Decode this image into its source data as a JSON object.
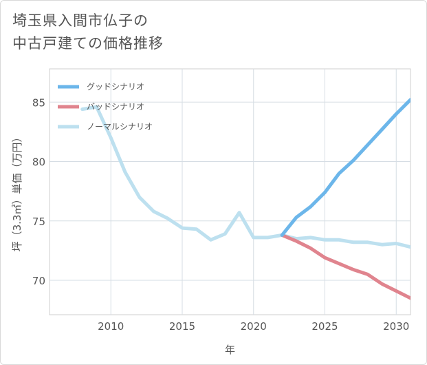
{
  "page_title": {
    "line1": "埼玉県入間市仏子の",
    "line2": "中古戸建ての価格推移"
  },
  "chart_data": {
    "type": "line",
    "xlabel": "年",
    "ylabel": "坪（3.3㎡）単価（万円）",
    "xlim": [
      2005.7,
      2031
    ],
    "ylim": [
      67.1,
      87.8
    ],
    "xticks": [
      2010,
      2015,
      2020,
      2025,
      2030
    ],
    "yticks": [
      70,
      75,
      80,
      85
    ],
    "grid": true,
    "legend_position": "top-left",
    "series": [
      {
        "name": "グッドシナリオ",
        "color": "#6cb6ea",
        "x": [
          2022,
          2023,
          2024,
          2025,
          2026,
          2027,
          2028,
          2029,
          2030,
          2031
        ],
        "y": [
          73.8,
          75.3,
          76.2,
          77.4,
          79.0,
          80.1,
          81.4,
          82.7,
          84.0,
          85.2
        ]
      },
      {
        "name": "バッドシナリオ",
        "color": "#e0848e",
        "x": [
          2022,
          2023,
          2024,
          2025,
          2026,
          2027,
          2028,
          2029,
          2030,
          2031
        ],
        "y": [
          73.8,
          73.3,
          72.7,
          71.9,
          71.4,
          70.9,
          70.5,
          69.7,
          69.1,
          68.5
        ]
      },
      {
        "name": "ノーマルシナリオ",
        "color": "#bde0ef",
        "x": [
          2008,
          2009,
          2010,
          2011,
          2012,
          2013,
          2014,
          2015,
          2016,
          2017,
          2018,
          2019,
          2020,
          2021,
          2022,
          2023,
          2024,
          2025,
          2026,
          2027,
          2028,
          2029,
          2030,
          2031
        ],
        "y": [
          84.4,
          84.6,
          82.0,
          79.1,
          77.0,
          75.8,
          75.2,
          74.4,
          74.3,
          73.4,
          73.9,
          75.7,
          73.6,
          73.6,
          73.8,
          73.5,
          73.6,
          73.4,
          73.4,
          73.2,
          73.2,
          73.0,
          73.1,
          72.8
        ]
      }
    ]
  }
}
